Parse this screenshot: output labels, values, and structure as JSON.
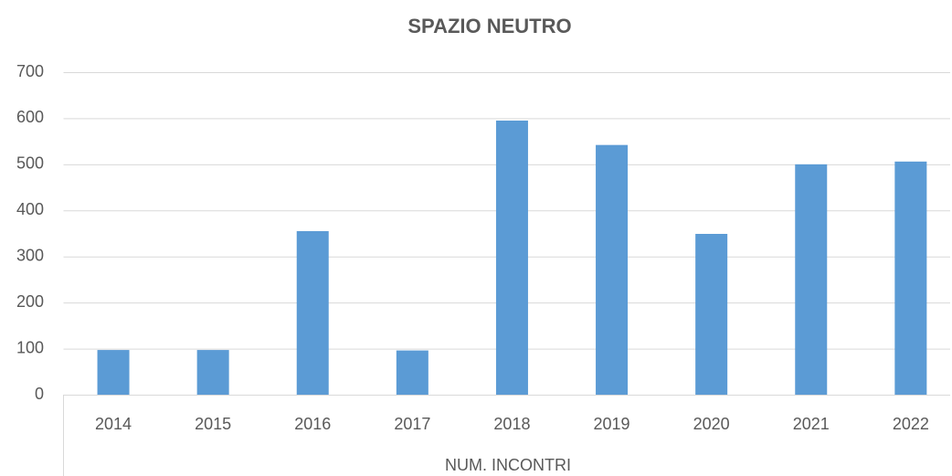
{
  "chart_data": {
    "type": "bar",
    "title": "SPAZIO NEUTRO",
    "x_label": "NUM. INCONTRI",
    "categories": [
      "2014",
      "2015",
      "2016",
      "2017",
      "2018",
      "2019",
      "2020",
      "2021",
      "2022"
    ],
    "values": [
      97,
      97,
      355,
      96,
      595,
      542,
      349,
      500,
      506
    ],
    "color": "#5b9bd5",
    "ylim": [
      0,
      700
    ],
    "yticks": [
      0,
      100,
      200,
      300,
      400,
      500,
      600,
      700
    ],
    "grid": true
  }
}
